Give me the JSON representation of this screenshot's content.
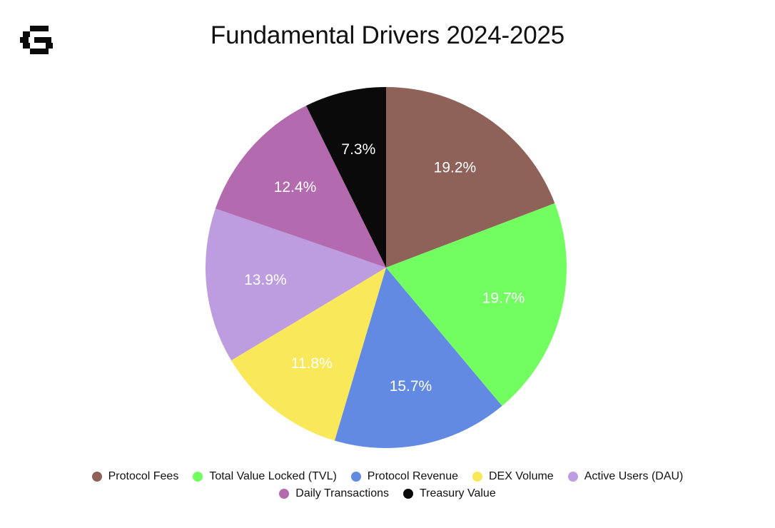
{
  "chart_data": {
    "type": "pie",
    "title": "Fundamental Drivers 2024-2025",
    "slices": [
      {
        "label": "Protocol Fees",
        "value": 19.2,
        "display": "19.2%",
        "color": "#8f6259"
      },
      {
        "label": "Total Value Locked (TVL)",
        "value": 19.7,
        "display": "19.7%",
        "color": "#72fd61"
      },
      {
        "label": "Protocol Revenue",
        "value": 15.7,
        "display": "15.7%",
        "color": "#628ae3"
      },
      {
        "label": "DEX Volume",
        "value": 11.8,
        "display": "11.8%",
        "color": "#f9e85a"
      },
      {
        "label": "Active Users (DAU)",
        "value": 13.9,
        "display": "13.9%",
        "color": "#bd9ddf"
      },
      {
        "label": "Daily Transactions",
        "value": 12.4,
        "display": "12.4%",
        "color": "#b36aaf"
      },
      {
        "label": "Treasury Value",
        "value": 7.3,
        "display": "7.3%",
        "color": "#0a0a0a"
      }
    ],
    "legend_position": "bottom",
    "start_angle": "12 o'clock, clockwise"
  },
  "branding": {
    "logo_icon": "pixel-g-logo-icon"
  }
}
